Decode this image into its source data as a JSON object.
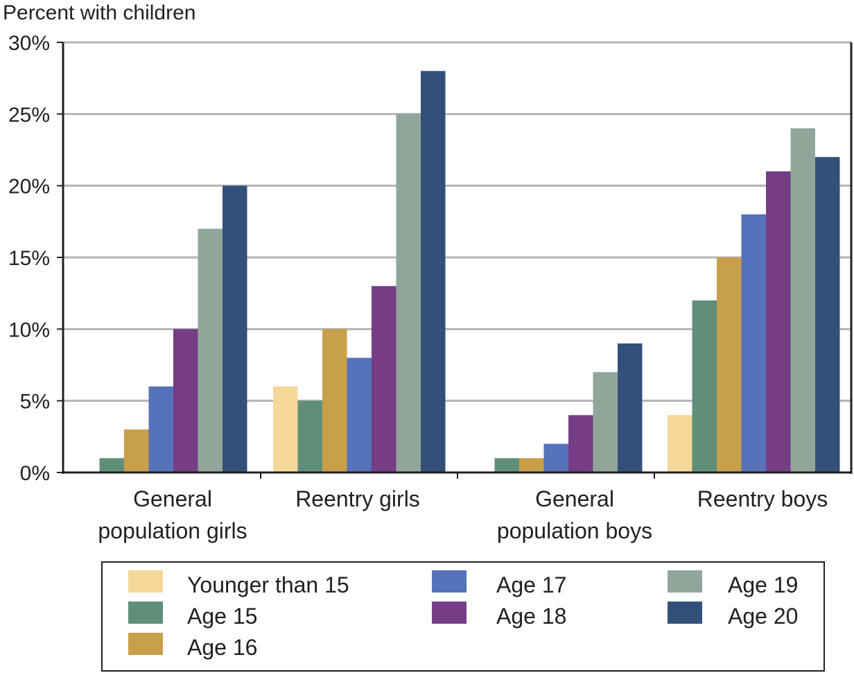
{
  "chart_data": {
    "type": "bar",
    "ylabel": "Percent with children",
    "ylim": [
      0,
      30
    ],
    "yticks": [
      0,
      5,
      10,
      15,
      20,
      25,
      30
    ],
    "ytick_labels": [
      "0%",
      "5%",
      "10%",
      "15%",
      "20%",
      "25%",
      "30%"
    ],
    "grid": true,
    "legend_position": "bottom",
    "categories": [
      [
        "General",
        "population girls"
      ],
      [
        "Reentry girls"
      ],
      [
        "General",
        "population boys"
      ],
      [
        "Reentry boys"
      ]
    ],
    "series": [
      {
        "name": "Younger than 15",
        "color": "#f5d79a",
        "values": [
          0,
          6,
          0,
          4
        ]
      },
      {
        "name": "Age 15",
        "color": "#5f8f78",
        "values": [
          1,
          5,
          1,
          12
        ]
      },
      {
        "name": "Age 16",
        "color": "#c89f4a",
        "values": [
          3,
          10,
          1,
          15
        ]
      },
      {
        "name": "Age 17",
        "color": "#5672b8",
        "values": [
          6,
          8,
          2,
          18
        ]
      },
      {
        "name": "Age 18",
        "color": "#743d86",
        "values": [
          10,
          13,
          4,
          21
        ]
      },
      {
        "name": "Age 19",
        "color": "#91a69a",
        "values": [
          17,
          25,
          7,
          24
        ]
      },
      {
        "name": "Age 20",
        "color": "#32507a",
        "values": [
          20,
          28,
          9,
          22
        ]
      }
    ]
  }
}
